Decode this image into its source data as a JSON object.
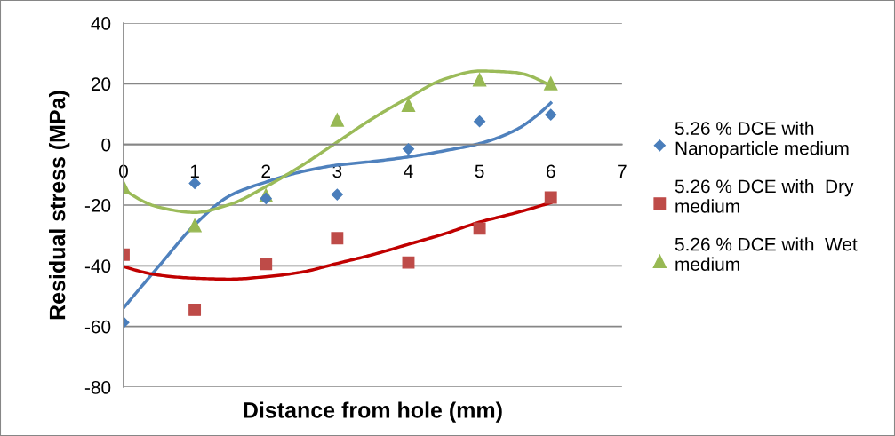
{
  "chart_data": {
    "type": "scatter",
    "xlabel": "Distance from hole (mm)",
    "ylabel": "Residual stress (MPa)",
    "xlim": [
      0,
      7
    ],
    "xticks": [
      0,
      1,
      2,
      3,
      4,
      5,
      6,
      7
    ],
    "ylim": [
      -80,
      40
    ],
    "yticks": [
      -80,
      -60,
      -40,
      -20,
      0,
      20,
      40
    ],
    "grid": "y",
    "legend": "right",
    "series": [
      {
        "name": "5.26 % DCE with Nanoparticle medium",
        "marker": "diamond",
        "color": "#4a7ebb",
        "x": [
          0,
          1,
          2,
          3,
          4,
          5,
          6
        ],
        "values": [
          -58.7,
          -12.8,
          -17.8,
          -16.5,
          -1.5,
          7.6,
          9.8
        ]
      },
      {
        "name": "5.26 % DCE with  Dry medium",
        "marker": "square",
        "color": "#be4b48",
        "x": [
          0,
          1,
          2,
          3,
          4,
          5,
          6
        ],
        "values": [
          -36.3,
          -54.5,
          -39.4,
          -30.9,
          -38.9,
          -27.7,
          -17.5
        ]
      },
      {
        "name": "5.26 % DCE with  Wet medium",
        "marker": "triangle",
        "color": "#98b954",
        "x": [
          0,
          1,
          2,
          3,
          4,
          5,
          6
        ],
        "values": [
          -14,
          -26.7,
          -16.8,
          8.1,
          13,
          21.3,
          20.1
        ]
      },
      {
        "type": "line",
        "marker": "none",
        "line_style": "solid",
        "color": "#4f81bd",
        "x": [
          0,
          0.5,
          1,
          1.5,
          2,
          2.5,
          3,
          3.5,
          4,
          4.5,
          5,
          5.5,
          6
        ],
        "values": [
          -53.9,
          -40,
          -26.5,
          -16.8,
          -12.4,
          -9,
          -6.8,
          -5.6,
          -4.1,
          -2.1,
          0.3,
          4.7,
          13.7
        ]
      },
      {
        "type": "line",
        "marker": "none",
        "line_style": "solid",
        "color": "#c00000",
        "x": [
          0,
          0.5,
          1,
          1.5,
          2,
          2.5,
          3,
          3.5,
          4,
          4.5,
          5,
          5.5,
          6
        ],
        "values": [
          -40.2,
          -43.1,
          -44.1,
          -44.4,
          -43.6,
          -42.1,
          -39.2,
          -36.3,
          -32.9,
          -29.5,
          -25.6,
          -22.6,
          -19.2
        ]
      },
      {
        "type": "line",
        "marker": "none",
        "line_style": "solid",
        "color": "#9bbb59",
        "x": [
          0,
          0.5,
          1,
          1.5,
          2,
          2.5,
          3,
          3.5,
          4,
          4.5,
          5,
          5.5,
          6
        ],
        "values": [
          -14.8,
          -20.7,
          -22.4,
          -19.7,
          -13.9,
          -7,
          0.8,
          8.6,
          15.4,
          21.5,
          24.2,
          23.7,
          19.3
        ]
      }
    ]
  }
}
